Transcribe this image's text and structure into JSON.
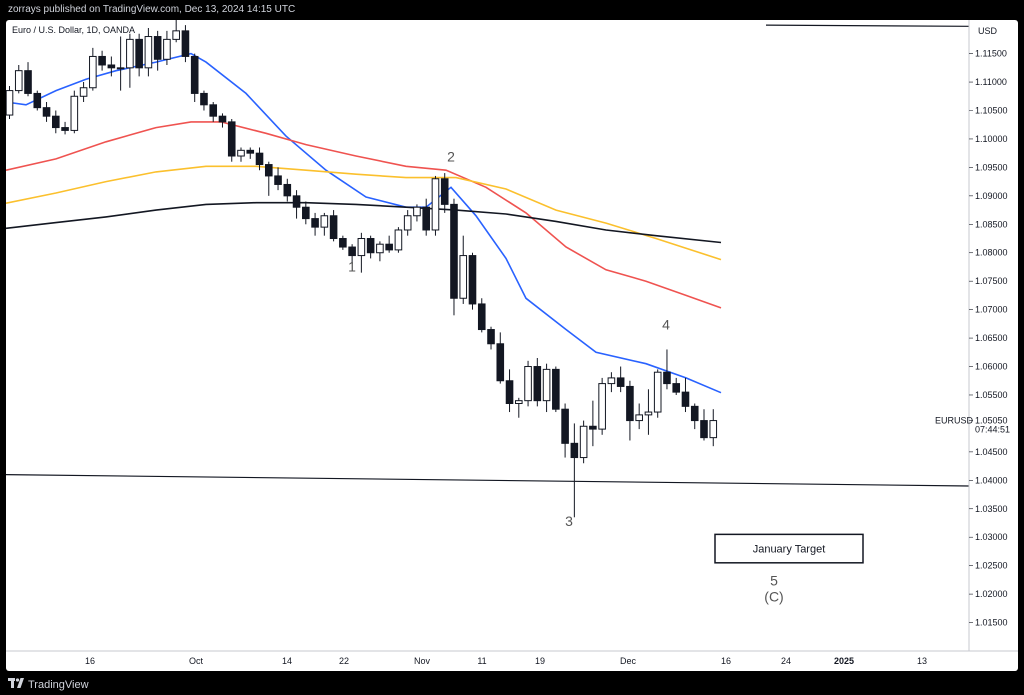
{
  "header": {
    "published_by": "zorrays published on TradingView.com, Dec 13, 2024 14:15 UTC"
  },
  "footer": {
    "brand": "TradingView"
  },
  "chart_data": {
    "type": "candlestick",
    "title": "Euro / U.S. Dollar, 1D, OANDA",
    "currency": "USD",
    "symbol": "EURUSD",
    "last_price": "1.05050",
    "countdown": "07:44:51",
    "y_ticks": [
      "1.11500",
      "1.11000",
      "1.10500",
      "1.10000",
      "1.09500",
      "1.09000",
      "1.08500",
      "1.08000",
      "1.07500",
      "1.07000",
      "1.06500",
      "1.06000",
      "1.05500",
      "1.05050",
      "1.04500",
      "1.04000",
      "1.03500",
      "1.03000",
      "1.02500",
      "1.02000",
      "1.01500"
    ],
    "x_ticks": [
      "16",
      "Oct",
      "14",
      "22",
      "Nov",
      "11",
      "19",
      "Dec",
      "16",
      "24",
      "2025",
      "13"
    ],
    "ylim": [
      1.01,
      1.1195
    ],
    "candles": [
      [
        1.1042,
        1.1093,
        1.1035,
        1.1085
      ],
      [
        1.1085,
        1.113,
        1.108,
        1.112
      ],
      [
        1.112,
        1.1135,
        1.1075,
        1.108
      ],
      [
        1.108,
        1.1085,
        1.105,
        1.1055
      ],
      [
        1.1055,
        1.1065,
        1.103,
        1.104
      ],
      [
        1.104,
        1.105,
        1.101,
        1.102
      ],
      [
        1.102,
        1.103,
        1.1008,
        1.1015
      ],
      [
        1.1015,
        1.1085,
        1.101,
        1.1075
      ],
      [
        1.1075,
        1.11,
        1.1065,
        1.109
      ],
      [
        1.109,
        1.116,
        1.1085,
        1.1145
      ],
      [
        1.1145,
        1.1155,
        1.112,
        1.113
      ],
      [
        1.113,
        1.1145,
        1.111,
        1.1125
      ],
      [
        1.1125,
        1.118,
        1.1085,
        1.1125
      ],
      [
        1.1125,
        1.1185,
        1.109,
        1.1175
      ],
      [
        1.1175,
        1.1185,
        1.111,
        1.1125
      ],
      [
        1.1125,
        1.1195,
        1.111,
        1.118
      ],
      [
        1.118,
        1.119,
        1.112,
        1.114
      ],
      [
        1.114,
        1.119,
        1.113,
        1.1175
      ],
      [
        1.1175,
        1.121,
        1.117,
        1.119
      ],
      [
        1.119,
        1.12,
        1.1135,
        1.1145
      ],
      [
        1.1145,
        1.115,
        1.1065,
        1.108
      ],
      [
        1.108,
        1.1085,
        1.105,
        1.106
      ],
      [
        1.106,
        1.1065,
        1.103,
        1.104
      ],
      [
        1.104,
        1.1045,
        1.102,
        1.103
      ],
      [
        1.103,
        1.1035,
        1.096,
        1.097
      ],
      [
        1.097,
        1.0985,
        1.096,
        1.098
      ],
      [
        1.098,
        1.0985,
        1.0965,
        1.0975
      ],
      [
        1.0975,
        1.0985,
        1.0945,
        1.0955
      ],
      [
        1.0955,
        1.096,
        1.09,
        1.0935
      ],
      [
        1.0935,
        1.095,
        1.091,
        1.092
      ],
      [
        1.092,
        1.093,
        1.089,
        1.09
      ],
      [
        1.09,
        1.091,
        1.086,
        1.088
      ],
      [
        1.088,
        1.089,
        1.085,
        1.086
      ],
      [
        1.086,
        1.087,
        1.083,
        1.0845
      ],
      [
        1.0845,
        1.087,
        1.083,
        1.0865
      ],
      [
        1.0865,
        1.0875,
        1.082,
        1.0825
      ],
      [
        1.0825,
        1.083,
        1.0805,
        1.081
      ],
      [
        1.081,
        1.0815,
        1.078,
        1.0795
      ],
      [
        1.0795,
        1.0835,
        1.0765,
        1.0825
      ],
      [
        1.0825,
        1.083,
        1.079,
        1.08
      ],
      [
        1.08,
        1.082,
        1.0785,
        1.0815
      ],
      [
        1.0815,
        1.083,
        1.08,
        1.0805
      ],
      [
        1.0805,
        1.0845,
        1.08,
        1.084
      ],
      [
        1.084,
        1.0875,
        1.083,
        1.0865
      ],
      [
        1.0865,
        1.0885,
        1.0855,
        1.088
      ],
      [
        1.088,
        1.0895,
        1.083,
        1.084
      ],
      [
        1.084,
        1.0935,
        1.083,
        1.093
      ],
      [
        1.093,
        1.094,
        1.087,
        1.0885
      ],
      [
        1.0885,
        1.0895,
        1.069,
        1.072
      ],
      [
        1.072,
        1.083,
        1.071,
        1.0795
      ],
      [
        1.0795,
        1.08,
        1.07,
        1.071
      ],
      [
        1.071,
        1.072,
        1.066,
        1.0665
      ],
      [
        1.0665,
        1.067,
        1.063,
        1.064
      ],
      [
        1.064,
        1.066,
        1.057,
        1.0575
      ],
      [
        1.0575,
        1.0595,
        1.052,
        1.0535
      ],
      [
        1.0535,
        1.0545,
        1.051,
        1.054
      ],
      [
        1.054,
        1.061,
        1.053,
        1.06
      ],
      [
        1.06,
        1.0615,
        1.053,
        1.054
      ],
      [
        1.054,
        1.0605,
        1.052,
        1.0595
      ],
      [
        1.0595,
        1.06,
        1.052,
        1.0525
      ],
      [
        1.0525,
        1.0535,
        1.044,
        1.0465
      ],
      [
        1.0465,
        1.05,
        1.0335,
        1.044
      ],
      [
        1.044,
        1.0505,
        1.043,
        1.0495
      ],
      [
        1.0495,
        1.054,
        1.046,
        1.049
      ],
      [
        1.049,
        1.058,
        1.048,
        1.057
      ],
      [
        1.057,
        1.059,
        1.0555,
        1.058
      ],
      [
        1.058,
        1.06,
        1.0555,
        1.0565
      ],
      [
        1.0565,
        1.0575,
        1.047,
        1.0505
      ],
      [
        1.0505,
        1.0535,
        1.049,
        1.0515
      ],
      [
        1.0515,
        1.056,
        1.048,
        1.052
      ],
      [
        1.052,
        1.0595,
        1.051,
        1.059
      ],
      [
        1.059,
        1.063,
        1.056,
        1.057
      ],
      [
        1.057,
        1.058,
        1.055,
        1.0555
      ],
      [
        1.0555,
        1.058,
        1.052,
        1.053
      ],
      [
        1.053,
        1.0535,
        1.049,
        1.0505
      ],
      [
        1.0505,
        1.0525,
        1.047,
        1.0475
      ],
      [
        1.0475,
        1.0525,
        1.046,
        1.0505
      ]
    ],
    "series": [
      {
        "color": "#2962ff",
        "values": [
          [
            0,
            1.1065
          ],
          [
            20,
            1.106
          ],
          [
            50,
            1.1085
          ],
          [
            80,
            1.1105
          ],
          [
            110,
            1.112
          ],
          [
            150,
            1.1135
          ],
          [
            185,
            1.115
          ],
          [
            200,
            1.1135
          ],
          [
            240,
            1.108
          ],
          [
            280,
            1.1005
          ],
          [
            320,
            1.0945
          ],
          [
            360,
            1.0898
          ],
          [
            400,
            1.088
          ],
          [
            420,
            1.088
          ],
          [
            445,
            1.0915
          ],
          [
            470,
            1.0865
          ],
          [
            500,
            1.079
          ],
          [
            520,
            1.072
          ],
          [
            560,
            1.0665
          ],
          [
            590,
            1.0625
          ],
          [
            640,
            1.0605
          ],
          [
            680,
            1.058
          ],
          [
            715,
            1.0554
          ]
        ]
      },
      {
        "color": "#ef5350",
        "values": [
          [
            0,
            1.0945
          ],
          [
            50,
            1.0965
          ],
          [
            100,
            1.0995
          ],
          [
            150,
            1.102
          ],
          [
            185,
            1.103
          ],
          [
            215,
            1.103
          ],
          [
            260,
            1.101
          ],
          [
            300,
            1.099
          ],
          [
            350,
            1.097
          ],
          [
            400,
            1.0952
          ],
          [
            440,
            1.0945
          ],
          [
            480,
            1.0915
          ],
          [
            520,
            1.087
          ],
          [
            560,
            1.081
          ],
          [
            600,
            1.077
          ],
          [
            640,
            1.075
          ],
          [
            680,
            1.0725
          ],
          [
            715,
            1.0703
          ]
        ]
      },
      {
        "color": "#fbc02d",
        "values": [
          [
            0,
            1.0887
          ],
          [
            50,
            1.0905
          ],
          [
            100,
            1.0925
          ],
          [
            150,
            1.0942
          ],
          [
            200,
            1.0952
          ],
          [
            250,
            1.0952
          ],
          [
            300,
            1.0945
          ],
          [
            350,
            1.0938
          ],
          [
            400,
            1.0932
          ],
          [
            450,
            1.0932
          ],
          [
            500,
            1.0912
          ],
          [
            550,
            1.0875
          ],
          [
            600,
            1.0852
          ],
          [
            650,
            1.0825
          ],
          [
            715,
            1.0788
          ]
        ]
      },
      {
        "color": "#131722",
        "values": [
          [
            0,
            1.0843
          ],
          [
            50,
            1.0853
          ],
          [
            100,
            1.0863
          ],
          [
            150,
            1.0875
          ],
          [
            200,
            1.0885
          ],
          [
            250,
            1.0888
          ],
          [
            300,
            1.0888
          ],
          [
            350,
            1.0885
          ],
          [
            400,
            1.088
          ],
          [
            450,
            1.0875
          ],
          [
            500,
            1.0868
          ],
          [
            550,
            1.0855
          ],
          [
            600,
            1.084
          ],
          [
            650,
            1.083
          ],
          [
            715,
            1.0818
          ]
        ]
      }
    ],
    "trendlines": [
      {
        "from": [
          0,
          1.041
        ],
        "to": [
          963,
          1.039
        ]
      },
      {
        "from": [
          760,
          1.12
        ],
        "to": [
          963,
          1.1198
        ]
      }
    ],
    "wave_labels": [
      {
        "text": "1",
        "at": [
          346,
          1.0767
        ]
      },
      {
        "text": "2",
        "at": [
          445,
          1.096
        ]
      },
      {
        "text": "3",
        "at": [
          563,
          1.032
        ]
      },
      {
        "text": "4",
        "at": [
          660,
          1.0665
        ]
      },
      {
        "text": "5",
        "at": [
          768,
          1.0215
        ]
      },
      {
        "text": "(C)",
        "at": [
          768,
          1.0187
        ]
      }
    ],
    "annotations": [
      {
        "text": "January Target",
        "box": [
          1.0305,
          1.0255
        ]
      }
    ]
  }
}
